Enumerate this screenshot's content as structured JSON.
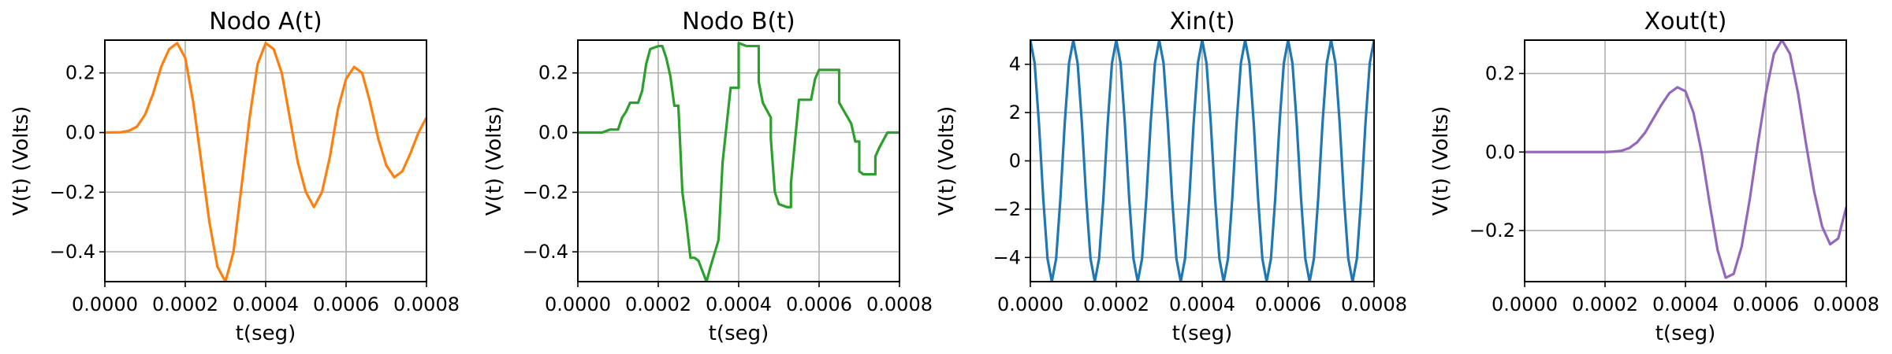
{
  "chart_data": [
    {
      "type": "line",
      "title": "Nodo A(t)",
      "xlabel": "t(seg)",
      "ylabel": "V(t) (Volts)",
      "xlim": [
        0,
        0.0008
      ],
      "ylim": [
        -0.5,
        0.31
      ],
      "xticks": [
        0,
        0.0002,
        0.0004,
        0.0006,
        0.0008
      ],
      "xtick_labels": [
        "0.0000",
        "0.0002",
        "0.0004",
        "0.0006",
        "0.0008"
      ],
      "yticks": [
        -0.4,
        -0.2,
        0.0,
        0.2
      ],
      "ytick_labels": [
        "−0.4",
        "−0.2",
        "0.0",
        "0.2"
      ],
      "grid": true,
      "color": "#ff7f0e",
      "series": [
        {
          "x": [
            0,
            4e-05,
            6e-05,
            8e-05,
            0.0001,
            0.00012,
            0.00014,
            0.00016,
            0.00018,
            0.0002,
            0.00022,
            0.00024,
            0.00026,
            0.00028,
            0.0003,
            0.00032,
            0.00034,
            0.00036,
            0.00038,
            0.0004,
            0.00042,
            0.00044,
            0.00046,
            0.00048,
            0.0005,
            0.00052,
            0.00054,
            0.00056,
            0.00058,
            0.0006,
            0.00062,
            0.00064,
            0.00066,
            0.00068,
            0.0007,
            0.00072,
            0.00074,
            0.00076,
            0.00078,
            0.0008
          ],
          "y": [
            0,
            0.001,
            0.006,
            0.02,
            0.06,
            0.13,
            0.22,
            0.28,
            0.3,
            0.25,
            0.1,
            -0.1,
            -0.3,
            -0.45,
            -0.5,
            -0.4,
            -0.18,
            0.05,
            0.23,
            0.3,
            0.28,
            0.2,
            0.05,
            -0.1,
            -0.2,
            -0.25,
            -0.2,
            -0.08,
            0.08,
            0.18,
            0.22,
            0.2,
            0.1,
            -0.02,
            -0.11,
            -0.15,
            -0.13,
            -0.07,
            0.0,
            0.05
          ]
        }
      ]
    },
    {
      "type": "line",
      "title": "Nodo B(t)",
      "xlabel": "t(seg)",
      "ylabel": "V(t) (Volts)",
      "xlim": [
        0,
        0.0008
      ],
      "ylim": [
        -0.5,
        0.31
      ],
      "xticks": [
        0,
        0.0002,
        0.0004,
        0.0006,
        0.0008
      ],
      "xtick_labels": [
        "0.0000",
        "0.0002",
        "0.0004",
        "0.0006",
        "0.0008"
      ],
      "yticks": [
        -0.4,
        -0.2,
        0.0,
        0.2
      ],
      "ytick_labels": [
        "−0.4",
        "−0.2",
        "0.0",
        "0.2"
      ],
      "grid": true,
      "color": "#2ca02c",
      "series": [
        {
          "x": [
            0,
            6e-05,
            8e-05,
            0.0001,
            0.00011,
            0.00012,
            0.00013,
            0.00014,
            0.00015,
            0.00016,
            0.00017,
            0.00018,
            0.0002,
            0.00021,
            0.00022,
            0.00023,
            0.00024,
            0.00025,
            0.00026,
            0.00027,
            0.00028,
            0.00029,
            0.0003,
            0.00032,
            0.00033,
            0.00035,
            0.00035,
            0.00036,
            0.00038,
            0.0004,
            0.0004,
            0.00042,
            0.00045,
            0.00045,
            0.00046,
            0.00048,
            0.00048,
            0.00049,
            0.0005,
            0.00052,
            0.00053,
            0.00053,
            0.00055,
            0.00058,
            0.00059,
            0.0006,
            0.00061,
            0.00062,
            0.00065,
            0.00065,
            0.00068,
            0.00069,
            0.0007,
            0.0007,
            0.00071,
            0.00074,
            0.00074,
            0.00075,
            0.00077,
            0.0008
          ],
          "y": [
            0,
            0,
            0.01,
            0.01,
            0.05,
            0.07,
            0.1,
            0.1,
            0.1,
            0.14,
            0.23,
            0.28,
            0.29,
            0.29,
            0.25,
            0.19,
            0.09,
            0.09,
            -0.2,
            -0.3,
            -0.42,
            -0.42,
            -0.43,
            -0.5,
            -0.45,
            -0.36,
            -0.36,
            -0.1,
            0.15,
            0.15,
            0.3,
            0.29,
            0.29,
            0.17,
            0.1,
            0.05,
            -0.02,
            -0.2,
            -0.24,
            -0.25,
            -0.25,
            -0.17,
            0.11,
            0.11,
            0.18,
            0.21,
            0.21,
            0.21,
            0.21,
            0.1,
            0.03,
            -0.03,
            -0.03,
            -0.13,
            -0.14,
            -0.14,
            -0.08,
            -0.05,
            0.0,
            0.0
          ]
        }
      ]
    },
    {
      "type": "line",
      "title": "Xin(t)",
      "xlabel": "t(seg)",
      "ylabel": "V(t) (Volts)",
      "xlim": [
        0,
        0.0008
      ],
      "ylim": [
        -5.0,
        5.0
      ],
      "xticks": [
        0,
        0.0002,
        0.0004,
        0.0006,
        0.0008
      ],
      "xtick_labels": [
        "0.0000",
        "0.0002",
        "0.0004",
        "0.0006",
        "0.0008"
      ],
      "yticks": [
        -4,
        -2,
        0,
        2,
        4
      ],
      "ytick_labels": [
        "−4",
        "−2",
        "0",
        "2",
        "4"
      ],
      "grid": true,
      "color": "#1f77b4",
      "series": [
        {
          "x": [
            0,
            1e-05,
            2e-05,
            3e-05,
            4e-05,
            5e-05,
            6e-05,
            7e-05,
            8e-05,
            9e-05,
            0.0001,
            0.00011,
            0.00012,
            0.00013,
            0.00014,
            0.00015,
            0.00016,
            0.00017,
            0.00018,
            0.00019,
            0.0002,
            0.00021,
            0.00022,
            0.00023,
            0.00024,
            0.00025,
            0.00026,
            0.00027,
            0.00028,
            0.00029,
            0.0003,
            0.00031,
            0.00032,
            0.00033,
            0.00034,
            0.00035,
            0.00036,
            0.00037,
            0.00038,
            0.00039,
            0.0004,
            0.00041,
            0.00042,
            0.00043,
            0.00044,
            0.00045,
            0.00046,
            0.00047,
            0.00048,
            0.00049,
            0.0005,
            0.00051,
            0.00052,
            0.00053,
            0.00054,
            0.00055,
            0.00056,
            0.00057,
            0.00058,
            0.00059,
            0.0006,
            0.00061,
            0.00062,
            0.00063,
            0.00064,
            0.00065,
            0.00066,
            0.00067,
            0.00068,
            0.00069,
            0.0007,
            0.00071,
            0.00072,
            0.00073,
            0.00074,
            0.00075,
            0.00076,
            0.00077,
            0.00078,
            0.00079,
            0.0008
          ],
          "y": [
            5.0,
            4.05,
            1.55,
            -1.55,
            -4.05,
            -5.0,
            -4.05,
            -1.55,
            1.55,
            4.05,
            5.0,
            4.05,
            1.55,
            -1.55,
            -4.05,
            -5.0,
            -4.05,
            -1.55,
            1.55,
            4.05,
            5.0,
            4.05,
            1.55,
            -1.55,
            -4.05,
            -5.0,
            -4.05,
            -1.55,
            1.55,
            4.05,
            5.0,
            4.05,
            1.55,
            -1.55,
            -4.05,
            -5.0,
            -4.05,
            -1.55,
            1.55,
            4.05,
            5.0,
            4.05,
            1.55,
            -1.55,
            -4.05,
            -5.0,
            -4.05,
            -1.55,
            1.55,
            4.05,
            5.0,
            4.05,
            1.55,
            -1.55,
            -4.05,
            -5.0,
            -4.05,
            -1.55,
            1.55,
            4.05,
            5.0,
            4.05,
            1.55,
            -1.55,
            -4.05,
            -5.0,
            -4.05,
            -1.55,
            1.55,
            4.05,
            5.0,
            4.05,
            1.55,
            -1.55,
            -4.05,
            -5.0,
            -4.05,
            -1.55,
            1.55,
            4.05,
            5.0
          ]
        }
      ]
    },
    {
      "type": "line",
      "title": "Xout(t)",
      "xlabel": "t(seg)",
      "ylabel": "V(t) (Volts)",
      "xlim": [
        0,
        0.0008
      ],
      "ylim": [
        -0.33,
        0.285
      ],
      "xticks": [
        0,
        0.0002,
        0.0004,
        0.0006,
        0.0008
      ],
      "xtick_labels": [
        "0.0000",
        "0.0002",
        "0.0004",
        "0.0006",
        "0.0008"
      ],
      "yticks": [
        -0.2,
        0.0,
        0.2
      ],
      "ytick_labels": [
        "−0.2",
        "0.0",
        "0.2"
      ],
      "grid": true,
      "color": "#9467bd",
      "series": [
        {
          "x": [
            0,
            0.0002,
            0.00022,
            0.00024,
            0.00026,
            0.00028,
            0.0003,
            0.00032,
            0.00034,
            0.00036,
            0.00038,
            0.0004,
            0.00042,
            0.00044,
            0.00046,
            0.00048,
            0.0005,
            0.00052,
            0.00054,
            0.00056,
            0.00058,
            0.0006,
            0.00062,
            0.00064,
            0.00066,
            0.00068,
            0.0007,
            0.00072,
            0.00074,
            0.00076,
            0.00078,
            0.0008
          ],
          "y": [
            0,
            0.0,
            0.001,
            0.003,
            0.01,
            0.025,
            0.05,
            0.085,
            0.12,
            0.15,
            0.165,
            0.155,
            0.1,
            0.0,
            -0.13,
            -0.25,
            -0.32,
            -0.31,
            -0.24,
            -0.12,
            0.02,
            0.15,
            0.25,
            0.285,
            0.25,
            0.15,
            0.02,
            -0.1,
            -0.19,
            -0.235,
            -0.22,
            -0.14
          ]
        }
      ]
    }
  ]
}
